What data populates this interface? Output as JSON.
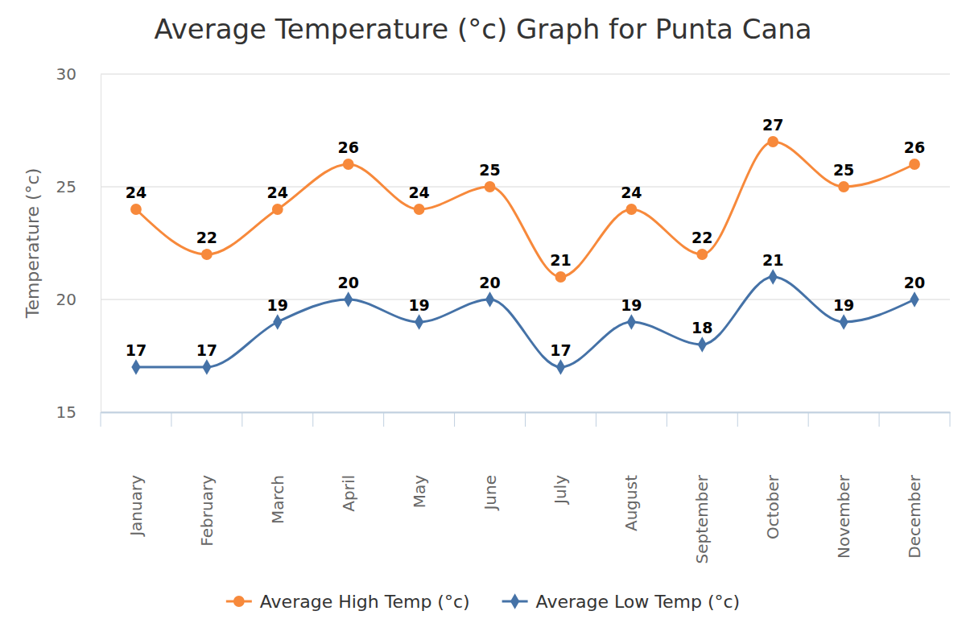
{
  "chart_data": {
    "type": "line",
    "title": "Average Temperature (°c) Graph for Punta Cana",
    "y_label": "Temperature (°c)",
    "categories": [
      "January",
      "February",
      "March",
      "April",
      "May",
      "June",
      "July",
      "August",
      "September",
      "October",
      "November",
      "December"
    ],
    "series": [
      {
        "name": "Average High Temp (°c)",
        "color": "#f7893b",
        "marker": "circle",
        "values": [
          24,
          22,
          24,
          26,
          24,
          25,
          21,
          24,
          22,
          27,
          25,
          26
        ]
      },
      {
        "name": "Average Low Temp (°c)",
        "color": "#4572a7",
        "marker": "diamond",
        "values": [
          17,
          17,
          19,
          20,
          19,
          20,
          17,
          19,
          18,
          21,
          19,
          20
        ]
      }
    ],
    "ylim": [
      15,
      30
    ],
    "yticks": [
      15,
      20,
      25,
      30
    ],
    "grid": true,
    "legend": "bottom",
    "data_labels": true
  }
}
